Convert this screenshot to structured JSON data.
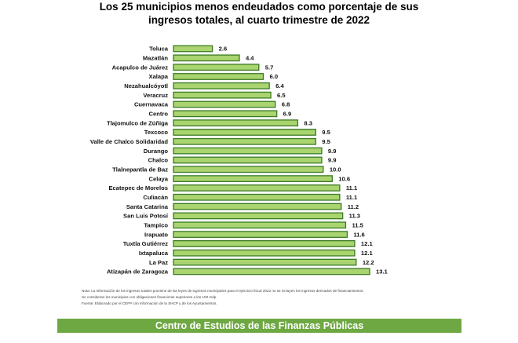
{
  "chart_data": {
    "type": "bar",
    "orientation": "horizontal",
    "title": "Los 25 municipios menos endeudados como porcentaje de sus ingresos totales, al cuarto trimestre de 2022",
    "categories": [
      "Toluca",
      "Mazatlán",
      "Acapulco de Juárez",
      "Xalapa",
      "Nezahualcóyotl",
      "Veracruz",
      "Cuernavaca",
      "Centro",
      "Tlajomulco de Zúñiga",
      "Texcoco",
      "Valle de Chalco Solidaridad",
      "Durango",
      "Chalco",
      "Tlalnepantla de Baz",
      "Celaya",
      "Ecatepec de Morelos",
      "Culiacán",
      "Santa Catarina",
      "San Luis Potosí",
      "Tampico",
      "Irapuato",
      "Tuxtla Gutiérrez",
      "Ixtapaluca",
      "La Paz",
      "Atizapán de Zaragoza"
    ],
    "values": [
      2.6,
      4.4,
      5.7,
      6.0,
      6.4,
      6.5,
      6.8,
      6.9,
      8.3,
      9.5,
      9.5,
      9.9,
      9.9,
      10.0,
      10.6,
      11.1,
      11.1,
      11.2,
      11.3,
      11.5,
      11.6,
      12.1,
      12.1,
      12.2,
      13.1
    ],
    "value_labels": [
      "2.6",
      "4.4",
      "5.7",
      "6.0",
      "6.4",
      "6.5",
      "6.8",
      "6.9",
      "8.3",
      "9.5",
      "9.5",
      "9.9",
      "9.9",
      "10.0",
      "10.6",
      "11.1",
      "11.1",
      "11.2",
      "11.3",
      "11.5",
      "11.6",
      "12.1",
      "12.1",
      "12.2",
      "13.1"
    ],
    "xlim": [
      0,
      13.1
    ],
    "grid": false,
    "colors": {
      "bar_fill": "#a9d46f",
      "bar_border": "#3b7a24"
    }
  },
  "notes": [
    "Nota: La información de los ingresos totales proviene de las leyes de ingresos municipales para el ejercicio fiscal 2022 no se incluyen los ingresos derivados de financiamientos.",
    "Se consideran los municipios con obligaciones financieras superiores a los 100 mdp.",
    "Fuente: Elaborado por el CEFP con información de la SHCP y de los Ayuntamientos."
  ],
  "footer": "Centro de Estudios de las Finanzas Públicas",
  "colors": {
    "footer_bg": "#6ea843",
    "footer_text": "#ffffff"
  }
}
